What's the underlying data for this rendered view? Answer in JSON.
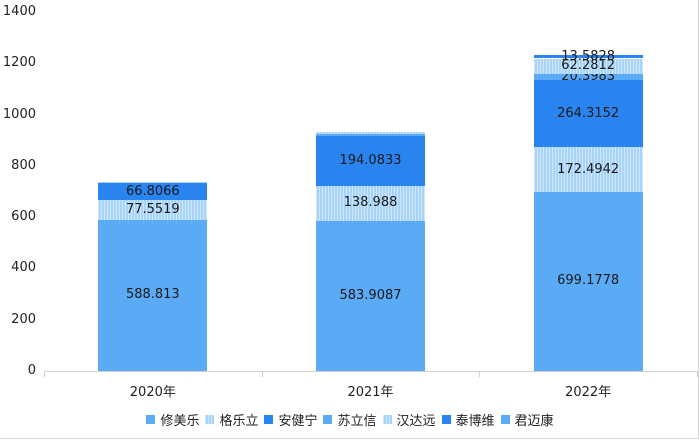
{
  "chart_data": {
    "type": "bar",
    "stacked": true,
    "title": "",
    "xlabel": "",
    "ylabel": "",
    "ylim": [
      0,
      1400
    ],
    "yticks": [
      0,
      200,
      400,
      600,
      800,
      1000,
      1200,
      1400
    ],
    "categories": [
      "2020年",
      "2021年",
      "2022年"
    ],
    "series": [
      {
        "name": "修美乐",
        "color": "#5aaaf5",
        "pattern": "solid",
        "values": [
          588.813,
          583.9087,
          699.1778
        ],
        "labels": [
          "588.813",
          "583.9087",
          "699.1778"
        ]
      },
      {
        "name": "格乐立",
        "color": "#a8d4fa",
        "pattern": "striped",
        "values": [
          77.5519,
          138.988,
          172.4942
        ],
        "labels": [
          "77.5519",
          "138.988",
          "172.4942"
        ]
      },
      {
        "name": "安健宁",
        "color": "#2a84f0",
        "pattern": "solid",
        "values": [
          66.8066,
          194.0833,
          264.3152
        ],
        "labels": [
          "66.8066",
          "194.0833",
          "264.3152"
        ]
      },
      {
        "name": "苏立信",
        "color": "#5aaaf5",
        "pattern": "solid",
        "values": [
          2,
          8,
          20.3983
        ],
        "labels": [
          "",
          "",
          "20.3983"
        ]
      },
      {
        "name": "汉达远",
        "color": "#a8d4fa",
        "pattern": "striped",
        "values": [
          2,
          8,
          62.2812
        ],
        "labels": [
          "",
          "",
          "62.2812"
        ]
      },
      {
        "name": "泰博维",
        "color": "#2a84f0",
        "pattern": "solid",
        "values": [
          0,
          0,
          13.5828
        ],
        "labels": [
          "",
          "",
          "13.5828"
        ]
      },
      {
        "name": "君迈康",
        "color": "#5aaaf5",
        "pattern": "solid",
        "values": [
          0,
          0,
          0
        ],
        "labels": [
          "",
          "",
          ""
        ]
      }
    ],
    "grid": false,
    "legend_position": "bottom"
  },
  "legend": [
    "修美乐",
    "格乐立",
    "安健宁",
    "苏立信",
    "汉达远",
    "泰博维",
    "君迈康"
  ],
  "y_axis": [
    "0",
    "200",
    "400",
    "600",
    "800",
    "1000",
    "1200",
    "1400"
  ],
  "x_axis": [
    "2020年",
    "2021年",
    "2022年"
  ]
}
